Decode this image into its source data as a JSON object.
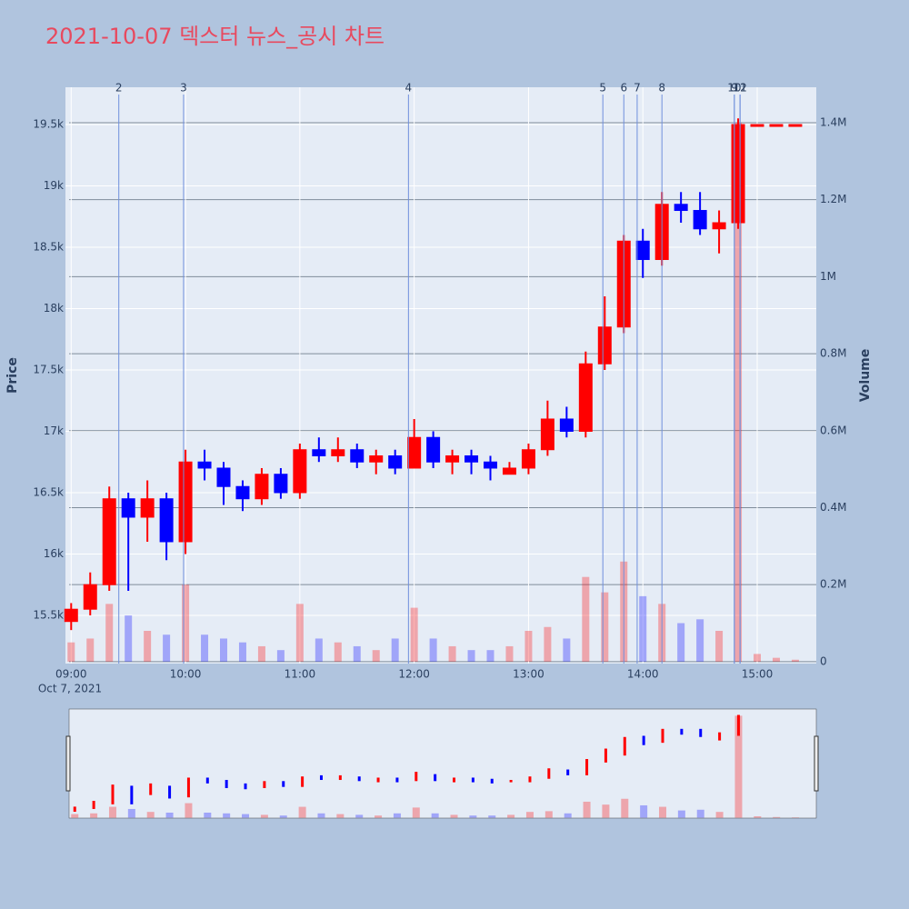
{
  "chart_data": {
    "type": "candlestick",
    "title": "2021-10-07 덱스터 뉴스_공시 차트",
    "x_date_label": "Oct 7, 2021",
    "ylabel": "Price",
    "y2label": "Volume",
    "increasing_color": "#ff0000",
    "decreasing_color": "#0000ff",
    "x": [
      "2021-10-07 09:00",
      "2021-10-07 09:10",
      "2021-10-07 09:20",
      "2021-10-07 09:30",
      "2021-10-07 09:40",
      "2021-10-07 09:50",
      "2021-10-07 10:00",
      "2021-10-07 10:10",
      "2021-10-07 10:20",
      "2021-10-07 10:30",
      "2021-10-07 10:40",
      "2021-10-07 10:50",
      "2021-10-07 11:00",
      "2021-10-07 11:10",
      "2021-10-07 11:20",
      "2021-10-07 11:30",
      "2021-10-07 11:40",
      "2021-10-07 11:50",
      "2021-10-07 12:00",
      "2021-10-07 12:10",
      "2021-10-07 12:20",
      "2021-10-07 12:30",
      "2021-10-07 12:40",
      "2021-10-07 12:50",
      "2021-10-07 13:00",
      "2021-10-07 13:10",
      "2021-10-07 13:20",
      "2021-10-07 13:30",
      "2021-10-07 13:40",
      "2021-10-07 13:50",
      "2021-10-07 14:00",
      "2021-10-07 14:10",
      "2021-10-07 14:20",
      "2021-10-07 14:30",
      "2021-10-07 14:40",
      "2021-10-07 14:50",
      "2021-10-07 15:00",
      "2021-10-07 15:10",
      "2021-10-07 15:20"
    ],
    "open": [
      15450,
      15550,
      15750,
      16450,
      16300,
      16450,
      16100,
      16750,
      16700,
      16550,
      16450,
      16650,
      16500,
      16850,
      16800,
      16850,
      16750,
      16800,
      16700,
      16950,
      16750,
      16800,
      16750,
      16650,
      16700,
      16850,
      17100,
      17000,
      17550,
      17850,
      18550,
      18400,
      18850,
      18800,
      18650,
      18700,
      19500,
      19500,
      19500
    ],
    "high": [
      15600,
      15850,
      16550,
      16500,
      16600,
      16500,
      16850,
      16850,
      16750,
      16600,
      16700,
      16700,
      16900,
      16950,
      16950,
      16900,
      16850,
      16850,
      17100,
      17000,
      16850,
      16850,
      16800,
      16750,
      16900,
      17250,
      17200,
      17650,
      18100,
      18600,
      18650,
      18950,
      18950,
      18950,
      18800,
      19550,
      19500,
      19500,
      19500
    ],
    "low": [
      15380,
      15500,
      15700,
      15700,
      16100,
      15950,
      16000,
      16600,
      16400,
      16350,
      16400,
      16450,
      16450,
      16750,
      16750,
      16700,
      16650,
      16650,
      16700,
      16700,
      16650,
      16650,
      16600,
      16650,
      16650,
      16800,
      16950,
      16950,
      17500,
      17800,
      18250,
      18350,
      18700,
      18600,
      18450,
      18650,
      19500,
      19500,
      19500
    ],
    "close": [
      15550,
      15750,
      16450,
      16300,
      16450,
      16100,
      16750,
      16700,
      16550,
      16450,
      16650,
      16500,
      16850,
      16800,
      16850,
      16750,
      16800,
      16700,
      16950,
      16750,
      16800,
      16750,
      16700,
      16700,
      16850,
      17100,
      17000,
      17550,
      17850,
      18550,
      18400,
      18850,
      18800,
      18650,
      18700,
      19500,
      19500,
      19500,
      19500
    ],
    "volume": [
      50000,
      60000,
      150000,
      120000,
      80000,
      70000,
      200000,
      70000,
      60000,
      50000,
      40000,
      30000,
      150000,
      60000,
      50000,
      40000,
      30000,
      60000,
      140000,
      60000,
      40000,
      30000,
      30000,
      40000,
      80000,
      90000,
      60000,
      220000,
      180000,
      260000,
      170000,
      150000,
      100000,
      110000,
      80000,
      1400000,
      20000,
      10000,
      5000
    ],
    "xlim": [
      "2021-10-07 08:57",
      "2021-10-07 15:31"
    ],
    "xticks": [
      {
        "value": "2021-10-07 09:00",
        "label": "09:00"
      },
      {
        "value": "2021-10-07 10:00",
        "label": "10:00"
      },
      {
        "value": "2021-10-07 11:00",
        "label": "11:00"
      },
      {
        "value": "2021-10-07 12:00",
        "label": "12:00"
      },
      {
        "value": "2021-10-07 13:00",
        "label": "13:00"
      },
      {
        "value": "2021-10-07 14:00",
        "label": "14:00"
      },
      {
        "value": "2021-10-07 15:00",
        "label": "15:00"
      }
    ],
    "ylim": [
      15107,
      19804
    ],
    "yticks": [
      {
        "value": 15500,
        "label": "15.5k"
      },
      {
        "value": 16000,
        "label": "16k"
      },
      {
        "value": 16500,
        "label": "16.5k"
      },
      {
        "value": 17000,
        "label": "17k"
      },
      {
        "value": 17500,
        "label": "17.5k"
      },
      {
        "value": 18000,
        "label": "18k"
      },
      {
        "value": 18500,
        "label": "18.5k"
      },
      {
        "value": 19000,
        "label": "19k"
      },
      {
        "value": 19500,
        "label": "19.5k"
      }
    ],
    "y2lim": [
      -5000,
      1492000
    ],
    "y2ticks": [
      0,
      {
        "value": 200000,
        "label": "0.2M"
      },
      {
        "value": 400000,
        "label": "0.4M"
      },
      {
        "value": 600000,
        "label": "0.6M"
      },
      {
        "value": 800000,
        "label": "0.8M"
      },
      {
        "value": 1000000,
        "label": "1M"
      },
      {
        "value": 1200000,
        "label": "1.2M"
      },
      {
        "value": 1400000,
        "label": "1.4M"
      }
    ],
    "annotations": [
      {
        "label": "2",
        "x": "2021-10-07 09:25"
      },
      {
        "label": "3",
        "x": "2021-10-07 09:59"
      },
      {
        "label": "4",
        "x": "2021-10-07 11:57"
      },
      {
        "label": "5",
        "x": "2021-10-07 13:39"
      },
      {
        "label": "6",
        "x": "2021-10-07 13:50"
      },
      {
        "label": "7",
        "x": "2021-10-07 13:57"
      },
      {
        "label": "8",
        "x": "2021-10-07 14:10"
      },
      {
        "label": "9",
        "x": "2021-10-07 14:48"
      },
      {
        "label": "10",
        "x": "2021-10-07 14:48"
      },
      {
        "label": "11",
        "x": "2021-10-07 14:51"
      },
      {
        "label": "12",
        "x": "2021-10-07 14:51"
      }
    ],
    "grid": true
  }
}
